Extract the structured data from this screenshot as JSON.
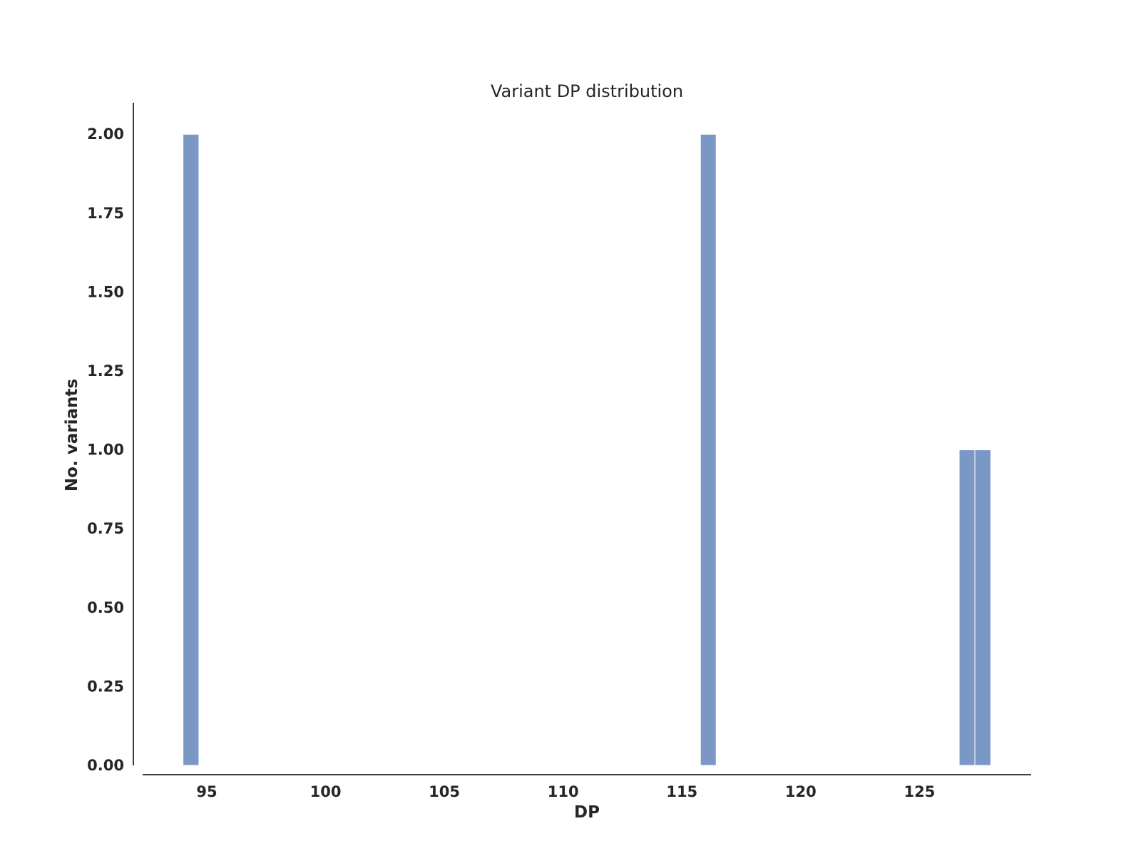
{
  "chart_data": {
    "type": "bar",
    "title": "Variant DP distribution",
    "xlabel": "DP",
    "ylabel": "No. variants",
    "xlim": [
      92.3,
      129.7
    ],
    "ylim": [
      0,
      2.1
    ],
    "xticks": [
      95,
      100,
      105,
      110,
      115,
      120,
      125
    ],
    "xtick_labels": [
      "95",
      "100",
      "105",
      "110",
      "115",
      "120",
      "125"
    ],
    "yticks": [
      0,
      0.25,
      0.5,
      0.75,
      1.0,
      1.25,
      1.5,
      1.75,
      2.0
    ],
    "ytick_labels": [
      "0.00",
      "0.25",
      "0.50",
      "0.75",
      "1.00",
      "1.25",
      "1.50",
      "1.75",
      "2.00"
    ],
    "bins": [
      {
        "start": 94.0,
        "end": 94.67,
        "value": 2
      },
      {
        "start": 115.78,
        "end": 116.44,
        "value": 2
      },
      {
        "start": 126.67,
        "end": 127.33,
        "value": 1
      },
      {
        "start": 127.33,
        "end": 128.0,
        "value": 1
      }
    ],
    "bar_color": "#7a97c5",
    "grid": false
  }
}
